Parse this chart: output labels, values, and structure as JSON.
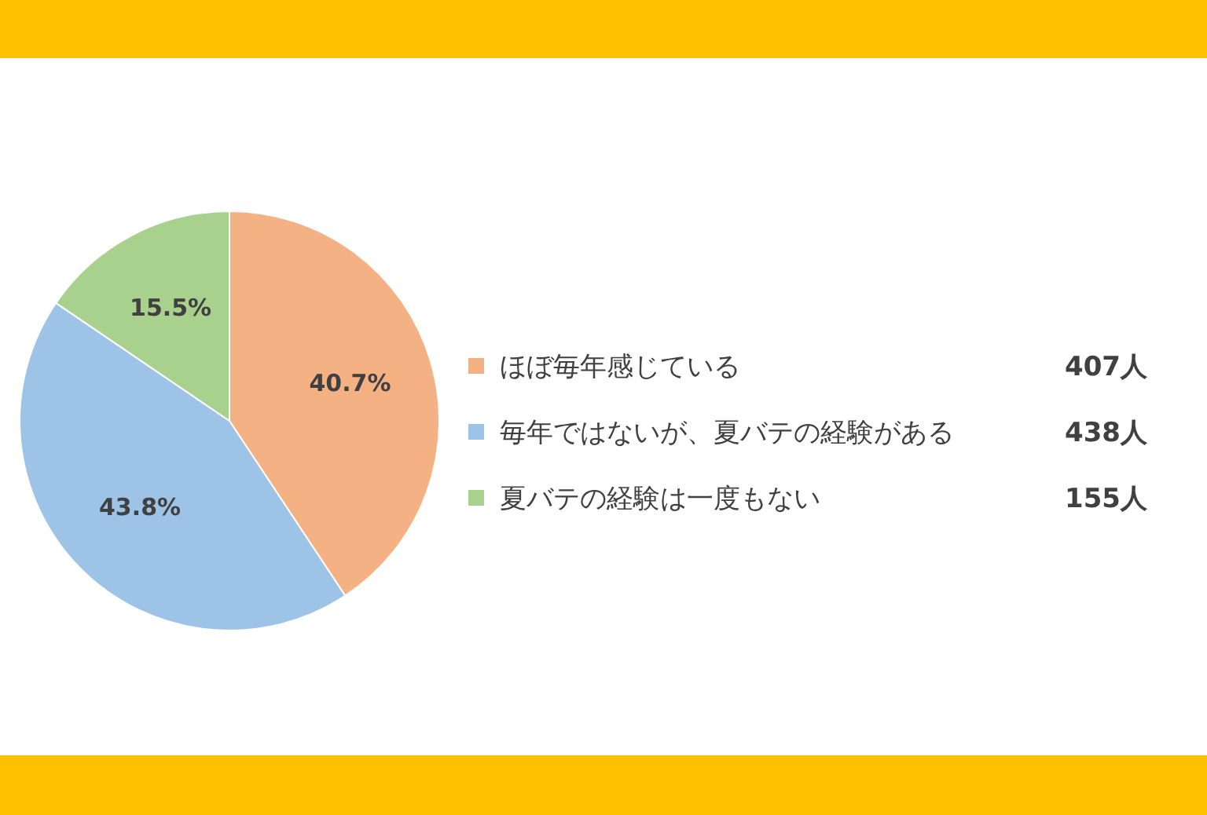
{
  "chart_data": {
    "type": "pie",
    "categories": [
      "ほぼ毎年感じている",
      "毎年ではないが、夏バテの経験がある",
      "夏バテの経験は一度もない"
    ],
    "values": [
      40.7,
      43.8,
      15.5
    ],
    "colors": [
      "#f4b183",
      "#9dc3e6",
      "#a9d18e"
    ],
    "value_labels": [
      "40.7%",
      "43.8%",
      "15.5%"
    ],
    "annotations": [
      "407人",
      "438人",
      "155人"
    ],
    "legend": "right"
  }
}
